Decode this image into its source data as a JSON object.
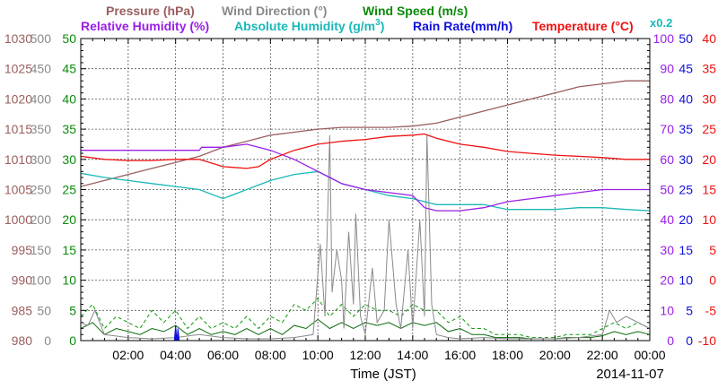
{
  "chart_data": {
    "type": "line",
    "legend": {
      "row1": [
        {
          "key": "pressure",
          "label": "Pressure (hPa)",
          "color": "#9b5e5e"
        },
        {
          "key": "wind_dir",
          "label": "Wind Direction (°)",
          "color": "#8a8a8a"
        },
        {
          "key": "wind_speed",
          "label": "Wind Speed (m/s)",
          "color": "#0a8a0a"
        }
      ],
      "row2": [
        {
          "key": "rel_humidity",
          "label": "Relative Humidity (%)",
          "color": "#9a1ee6"
        },
        {
          "key": "abs_humidity",
          "label": "Absolute Humidity (g/m",
          "sup": "3",
          "tail": ")",
          "color": "#1ab8b8"
        },
        {
          "key": "rain_rate",
          "label": "Rain Rate(mm/h)",
          "color": "#1010dd"
        },
        {
          "key": "temperature",
          "label": "Temperature (°C)",
          "color": "#ee1111"
        }
      ],
      "abs_humidity_scale": "x0.2"
    },
    "x_axis": {
      "label": "Time (JST)",
      "date": "2014-11-07",
      "range_hours": [
        0,
        24
      ],
      "tick_labels": [
        "02:00",
        "04:00",
        "06:00",
        "08:00",
        "10:00",
        "12:00",
        "14:00",
        "16:00",
        "18:00",
        "20:00",
        "22:00",
        "00:00"
      ]
    },
    "left_axes": [
      {
        "key": "pressure",
        "color": "#9b5e5e",
        "range": [
          980,
          1030
        ],
        "ticks": [
          "1030",
          "1025",
          "1020",
          "1015",
          "1010",
          "1005",
          "1000",
          "995",
          "990",
          "985",
          "980"
        ]
      },
      {
        "key": "wind_dir",
        "color": "#8a8a8a",
        "range": [
          0,
          500
        ],
        "ticks": [
          "500",
          "450",
          "400",
          "350",
          "300",
          "250",
          "200",
          "150",
          "100",
          "50",
          "0"
        ]
      },
      {
        "key": "wind_speed",
        "color": "#0a8a0a",
        "range": [
          0,
          50
        ],
        "ticks": [
          "50",
          "45",
          "40",
          "35",
          "30",
          "25",
          "20",
          "15",
          "10",
          "5",
          "0"
        ]
      }
    ],
    "right_axes": [
      {
        "key": "rel_humidity",
        "color": "#9a1ee6",
        "range": [
          0,
          100
        ],
        "ticks": [
          "100",
          "90",
          "80",
          "70",
          "60",
          "50",
          "40",
          "30",
          "20",
          "10",
          "0"
        ]
      },
      {
        "key": "rain_rate",
        "color": "#1010dd",
        "range": [
          0,
          50
        ],
        "ticks": [
          "50",
          "45",
          "40",
          "35",
          "30",
          "25",
          "20",
          "15",
          "10",
          "5",
          "0"
        ]
      },
      {
        "key": "temperature",
        "color": "#ee1111",
        "range": [
          -10,
          40
        ],
        "ticks": [
          "40",
          "35",
          "30",
          "25",
          "20",
          "15",
          "10",
          "5",
          "0",
          "-5",
          "-10"
        ]
      }
    ],
    "series": {
      "pressure": {
        "x": [
          0,
          1,
          2,
          3,
          4,
          5,
          6,
          7,
          8,
          9,
          10,
          11,
          12,
          13,
          14,
          15,
          16,
          17,
          18,
          19,
          20,
          21,
          22,
          23,
          24
        ],
        "y": [
          1005.5,
          1006.5,
          1007.5,
          1008.5,
          1009.5,
          1010.5,
          1012,
          1013,
          1014,
          1014.5,
          1015,
          1015.3,
          1015.3,
          1015.3,
          1015.5,
          1016,
          1017,
          1018,
          1019,
          1020,
          1021,
          1022,
          1022.5,
          1023,
          1023
        ]
      },
      "temperature": {
        "x": [
          0,
          1,
          2,
          3,
          4,
          5,
          6,
          7,
          7.5,
          8,
          9,
          10,
          11,
          12,
          13,
          14,
          14.5,
          15,
          16,
          17,
          18,
          19,
          20,
          21,
          22,
          23,
          24
        ],
        "y": [
          20.5,
          20,
          19.8,
          19.8,
          20,
          20,
          18.8,
          18.5,
          18.8,
          20,
          21.5,
          22.5,
          23,
          23.3,
          23.8,
          24,
          24.2,
          23.5,
          22.5,
          22,
          21.3,
          21,
          20.7,
          20.5,
          20.3,
          20,
          20
        ]
      },
      "rel_humidity": {
        "x": [
          0,
          5,
          5.1,
          6,
          7,
          8,
          9,
          10,
          10.5,
          11,
          12,
          13,
          14,
          14.5,
          15,
          16,
          17,
          18,
          19,
          20,
          21,
          22,
          23,
          24
        ],
        "y": [
          63,
          63,
          64,
          64,
          65,
          63,
          60,
          56,
          54,
          52,
          50,
          49,
          48,
          44,
          43,
          43,
          44,
          46,
          47,
          48,
          49,
          50,
          50,
          50
        ]
      },
      "abs_humidity": {
        "x": [
          0,
          1,
          2,
          3,
          4,
          5,
          6,
          7,
          8,
          9,
          10,
          10.5,
          11,
          12,
          13,
          14,
          14.5,
          15,
          16,
          17,
          18,
          19,
          20,
          21,
          22,
          23,
          24
        ],
        "y": [
          27.7,
          27,
          26.5,
          26,
          25.5,
          25,
          23.5,
          25,
          26.5,
          27.5,
          28,
          27,
          26,
          25,
          24,
          23.5,
          23,
          22.5,
          22.5,
          22.5,
          21.7,
          21.7,
          21.7,
          22,
          22,
          21.7,
          21.5
        ]
      },
      "rain_rate": {
        "x": [
          3.95,
          4.0,
          4.05,
          4.1,
          4.15
        ],
        "y": [
          0,
          2.5,
          0,
          2,
          0
        ]
      },
      "wind_dir": {
        "x": [
          0,
          0.3,
          0.6,
          1,
          2,
          3,
          4,
          5,
          6,
          7,
          8,
          9,
          9.8,
          10.1,
          10.3,
          10.5,
          10.6,
          10.8,
          11.0,
          11.1,
          11.3,
          11.5,
          11.6,
          11.8,
          12.0,
          12.3,
          12.5,
          12.8,
          13.0,
          13.3,
          13.5,
          13.8,
          14.0,
          14.3,
          14.5,
          14.6,
          14.8,
          15.0,
          15.5,
          16,
          17,
          18,
          19,
          20,
          21,
          22,
          22.3,
          22.6,
          23,
          24
        ],
        "y": [
          30,
          25,
          50,
          10,
          5,
          3,
          5,
          10,
          5,
          3,
          3,
          5,
          10,
          160,
          40,
          340,
          80,
          150,
          100,
          20,
          180,
          60,
          210,
          40,
          10,
          120,
          30,
          50,
          200,
          60,
          20,
          150,
          20,
          200,
          40,
          340,
          60,
          10,
          5,
          3,
          5,
          3,
          3,
          3,
          5,
          10,
          50,
          30,
          40,
          20
        ]
      },
      "wind_speed": {
        "x": [
          0,
          0.5,
          1,
          1.5,
          2,
          2.5,
          3,
          3.5,
          4,
          4.5,
          5,
          5.5,
          6,
          6.5,
          7,
          7.5,
          8,
          8.5,
          9,
          9.5,
          10,
          10.5,
          11,
          11.5,
          12,
          12.5,
          13,
          13.5,
          14,
          14.5,
          15,
          15.5,
          16,
          16.5,
          17,
          17.5,
          18,
          18.5,
          19,
          19.5,
          20,
          20.5,
          21,
          21.5,
          22,
          22.5,
          23,
          23.5,
          24
        ],
        "y": [
          2,
          3,
          1,
          2,
          1.5,
          1,
          2,
          1.5,
          2.5,
          1,
          2,
          1,
          1.5,
          1,
          2,
          1,
          2,
          1,
          2.5,
          2,
          3.5,
          2,
          3,
          2,
          3,
          2.5,
          3,
          2,
          3,
          2.5,
          3,
          1.5,
          2,
          1,
          1,
          0.5,
          0.5,
          0.5,
          0.3,
          0.3,
          0.3,
          0.5,
          0.5,
          0.5,
          0.8,
          1.5,
          1,
          1.5,
          1
        ]
      },
      "wind_speed_gust": {
        "x": [
          0,
          0.5,
          1,
          1.5,
          2,
          2.5,
          3,
          3.5,
          4,
          4.5,
          5,
          5.5,
          6,
          6.5,
          7,
          7.5,
          8,
          8.5,
          9,
          9.5,
          10,
          10.5,
          11,
          11.5,
          12,
          12.5,
          13,
          13.5,
          14,
          14.5,
          15,
          15.5,
          16,
          16.5,
          17,
          17.5,
          18,
          18.5,
          19,
          19.5,
          20,
          20.5,
          21,
          21.5,
          22,
          22.5,
          23,
          23.5,
          24
        ],
        "y": [
          4,
          6,
          2,
          4,
          3,
          2,
          5,
          3,
          5,
          2,
          4,
          2,
          3,
          2,
          4,
          2,
          4,
          3,
          6,
          5,
          7,
          4,
          6,
          4,
          6,
          5,
          5,
          4,
          6,
          5,
          5,
          3,
          4,
          2,
          2,
          1,
          1,
          1,
          0.5,
          0.5,
          0.5,
          1,
          1,
          1,
          2,
          3,
          2,
          3,
          2
        ]
      }
    }
  }
}
